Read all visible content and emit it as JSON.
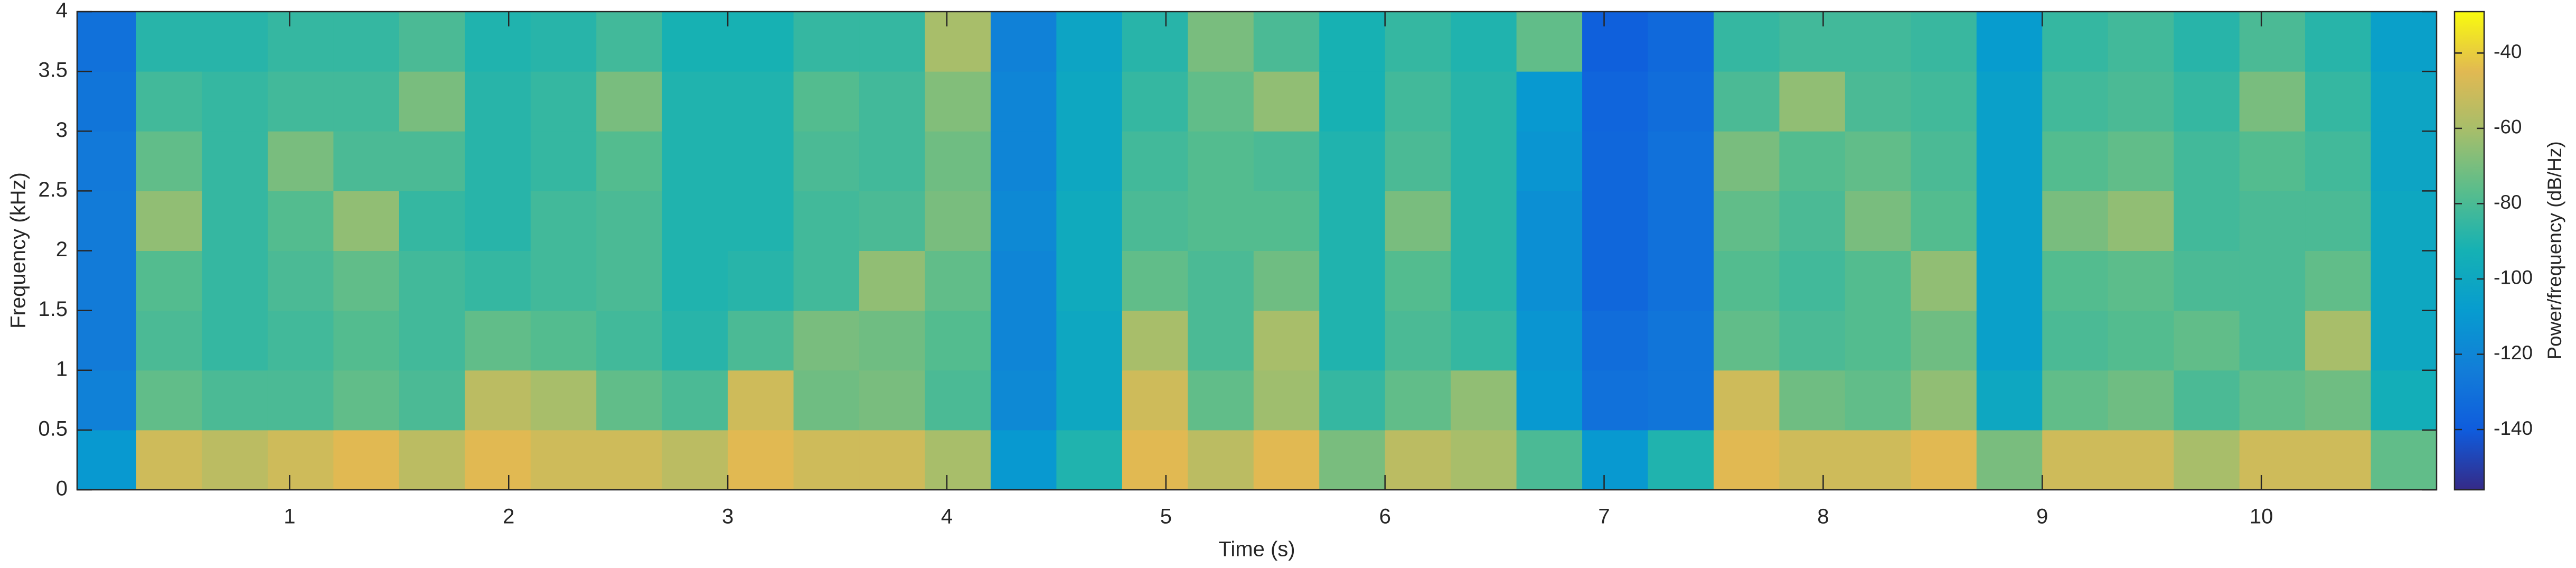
{
  "chart_data": {
    "type": "heatmap",
    "colormap": "parula",
    "xlabel": "Time (s)",
    "ylabel": "Frequency (kHz)",
    "x": [
      0.15,
      0.45,
      0.75,
      1.05,
      1.35,
      1.65,
      1.95,
      2.25,
      2.55,
      2.85,
      3.15,
      3.45,
      3.75,
      4.05,
      4.35,
      4.65,
      4.95,
      5.25,
      5.55,
      5.85,
      6.15,
      6.45,
      6.75,
      7.05,
      7.35,
      7.65,
      7.95,
      8.25,
      8.55,
      8.85,
      9.15,
      9.45,
      9.75,
      10.05,
      10.35,
      10.65
    ],
    "y": [
      0.25,
      0.75,
      1.25,
      1.75,
      2.25,
      2.75,
      3.25,
      3.75
    ],
    "values": [
      [
        -110,
        -50,
        -55,
        -50,
        -45,
        -55,
        -45,
        -50,
        -50,
        -55,
        -45,
        -50,
        -50,
        -60,
        -110,
        -90,
        -45,
        -55,
        -45,
        -70,
        -55,
        -60,
        -80,
        -110,
        -90,
        -45,
        -50,
        -50,
        -45,
        -70,
        -50,
        -50,
        -60,
        -50,
        -50,
        -75
      ],
      [
        -122,
        -75,
        -80,
        -80,
        -75,
        -80,
        -55,
        -60,
        -75,
        -80,
        -50,
        -72,
        -70,
        -80,
        -118,
        -100,
        -50,
        -75,
        -62,
        -85,
        -75,
        -65,
        -110,
        -130,
        -128,
        -50,
        -72,
        -75,
        -65,
        -100,
        -75,
        -72,
        -80,
        -75,
        -72,
        -95
      ],
      [
        -125,
        -80,
        -85,
        -82,
        -78,
        -82,
        -75,
        -78,
        -82,
        -88,
        -80,
        -70,
        -72,
        -78,
        -120,
        -100,
        -60,
        -80,
        -60,
        -90,
        -80,
        -85,
        -112,
        -132,
        -128,
        -75,
        -80,
        -78,
        -72,
        -105,
        -80,
        -78,
        -75,
        -80,
        -60,
        -100
      ],
      [
        -125,
        -78,
        -85,
        -80,
        -75,
        -82,
        -85,
        -82,
        -80,
        -90,
        -88,
        -82,
        -65,
        -75,
        -120,
        -98,
        -75,
        -80,
        -72,
        -90,
        -78,
        -88,
        -115,
        -135,
        -130,
        -78,
        -82,
        -78,
        -65,
        -105,
        -78,
        -76,
        -80,
        -80,
        -75,
        -100
      ],
      [
        -125,
        -65,
        -85,
        -78,
        -65,
        -85,
        -88,
        -82,
        -80,
        -90,
        -90,
        -82,
        -80,
        -70,
        -118,
        -98,
        -80,
        -78,
        -78,
        -90,
        -70,
        -88,
        -115,
        -135,
        -130,
        -75,
        -80,
        -70,
        -78,
        -105,
        -70,
        -65,
        -82,
        -80,
        -80,
        -100
      ],
      [
        -126,
        -75,
        -85,
        -70,
        -80,
        -80,
        -88,
        -85,
        -78,
        -90,
        -90,
        -80,
        -82,
        -72,
        -120,
        -100,
        -82,
        -78,
        -80,
        -90,
        -80,
        -88,
        -112,
        -135,
        -130,
        -70,
        -78,
        -75,
        -80,
        -105,
        -78,
        -75,
        -82,
        -78,
        -82,
        -102
      ],
      [
        -128,
        -82,
        -85,
        -82,
        -82,
        -70,
        -88,
        -85,
        -70,
        -90,
        -90,
        -78,
        -82,
        -68,
        -120,
        -100,
        -85,
        -75,
        -65,
        -92,
        -82,
        -88,
        -110,
        -136,
        -132,
        -80,
        -65,
        -80,
        -82,
        -105,
        -82,
        -80,
        -85,
        -70,
        -85,
        -102
      ],
      [
        -130,
        -88,
        -88,
        -85,
        -85,
        -80,
        -90,
        -88,
        -82,
        -92,
        -92,
        -85,
        -85,
        -60,
        -122,
        -102,
        -88,
        -70,
        -80,
        -92,
        -85,
        -90,
        -75,
        -138,
        -134,
        -85,
        -82,
        -82,
        -84,
        -108,
        -85,
        -82,
        -88,
        -80,
        -88,
        -105
      ]
    ],
    "xlim": [
      0.03,
      10.8
    ],
    "ylim": [
      0,
      4
    ],
    "xticks": [
      1,
      2,
      3,
      4,
      5,
      6,
      7,
      8,
      9,
      10
    ],
    "yticks": [
      0,
      0.5,
      1,
      1.5,
      2,
      2.5,
      3,
      3.5,
      4
    ],
    "colorbar": {
      "label": "Power/frequency (dB/Hz)",
      "clim": [
        -156,
        -29
      ],
      "ticks": [
        -140,
        -120,
        -100,
        -80,
        -60,
        -40
      ]
    }
  }
}
